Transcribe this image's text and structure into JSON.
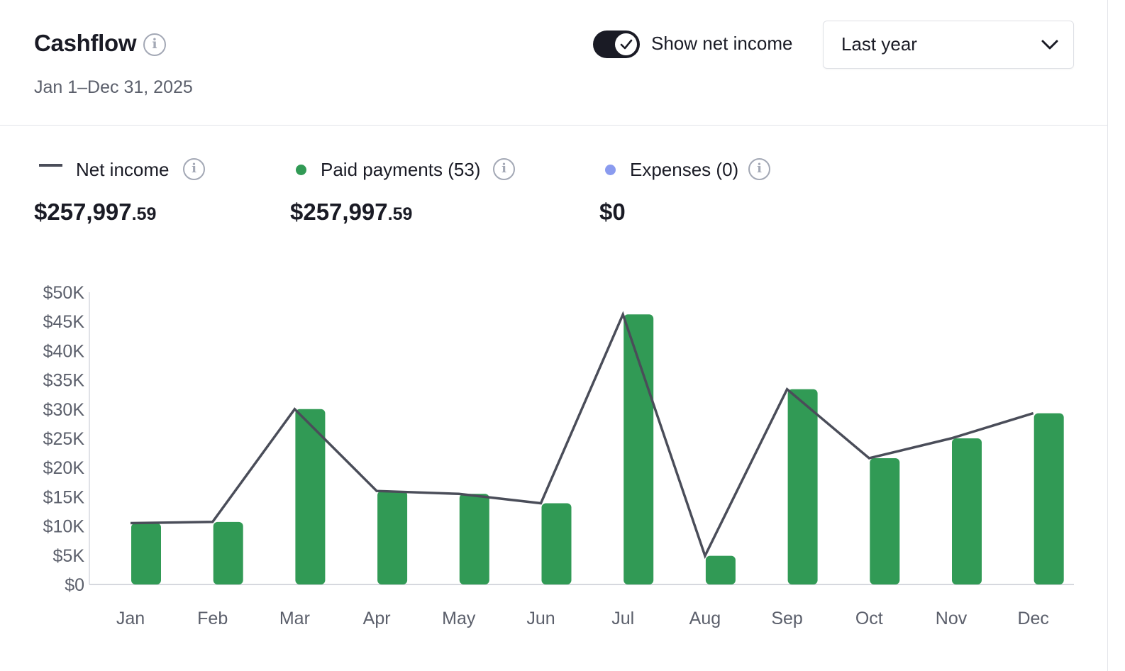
{
  "header": {
    "title": "Cashflow",
    "date_range": "Jan 1–Dec 31, 2025",
    "toggle_label": "Show net income",
    "toggle_on": true,
    "period_select": "Last year"
  },
  "legend": {
    "net_income": {
      "label": "Net income",
      "dollars": "$257,997",
      "cents": ".59",
      "color": "#4a4d59"
    },
    "paid_payments": {
      "label": "Paid payments (53)",
      "dollars": "$257,997",
      "cents": ".59",
      "color": "#319a55"
    },
    "expenses": {
      "label": "Expenses (0)",
      "dollars": "$0",
      "cents": "",
      "color": "#8a9bef"
    }
  },
  "chart_data": {
    "type": "bar",
    "categories": [
      "Jan",
      "Feb",
      "Mar",
      "Apr",
      "May",
      "Jun",
      "Jul",
      "Aug",
      "Sep",
      "Oct",
      "Nov",
      "Dec"
    ],
    "series": [
      {
        "name": "Paid payments",
        "type": "bar",
        "color": "#319a55",
        "values": [
          10500,
          10700,
          30000,
          16000,
          15500,
          13900,
          46200,
          4900,
          33400,
          21600,
          25000,
          29300
        ]
      },
      {
        "name": "Net income",
        "type": "line",
        "color": "#4a4d59",
        "values": [
          10500,
          10700,
          30000,
          16000,
          15500,
          13900,
          46200,
          4900,
          33400,
          21600,
          25000,
          29300
        ]
      }
    ],
    "y_ticks": [
      "$0",
      "$5K",
      "$10K",
      "$15K",
      "$20K",
      "$25K",
      "$30K",
      "$35K",
      "$40K",
      "$45K",
      "$50K"
    ],
    "ylim": [
      0,
      50000
    ],
    "grid": false
  }
}
